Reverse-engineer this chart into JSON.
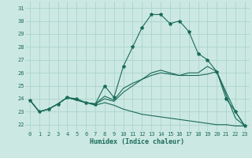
{
  "xlabel": "Humidex (Indice chaleur)",
  "bg_color": "#cce8e2",
  "line_color": "#1a6b5a",
  "grid_color": "#aad4cc",
  "xlim": [
    -0.5,
    23.5
  ],
  "ylim": [
    21.5,
    31.5
  ],
  "yticks": [
    22,
    23,
    24,
    25,
    26,
    27,
    28,
    29,
    30,
    31
  ],
  "xticks": [
    0,
    1,
    2,
    3,
    4,
    5,
    6,
    7,
    8,
    9,
    10,
    11,
    12,
    13,
    14,
    15,
    16,
    17,
    18,
    19,
    20,
    21,
    22,
    23
  ],
  "lines": [
    {
      "x": [
        0,
        1,
        2,
        3,
        4,
        5,
        6,
        7,
        8,
        9,
        10,
        11,
        12,
        13,
        14,
        15,
        16,
        17,
        18,
        19,
        20,
        21,
        22,
        23
      ],
      "y": [
        23.9,
        23.0,
        23.2,
        23.6,
        24.1,
        24.0,
        23.7,
        23.6,
        25.0,
        24.1,
        26.5,
        28.0,
        29.5,
        30.5,
        30.5,
        29.8,
        30.0,
        29.2,
        27.5,
        27.0,
        26.1,
        24.0,
        23.0,
        21.9
      ],
      "with_markers": true
    },
    {
      "x": [
        0,
        1,
        2,
        3,
        4,
        5,
        6,
        7,
        8,
        9,
        10,
        11,
        12,
        13,
        14,
        15,
        16,
        17,
        18,
        19,
        20,
        21,
        22,
        23
      ],
      "y": [
        23.9,
        23.0,
        23.2,
        23.6,
        24.1,
        23.9,
        23.7,
        23.6,
        24.2,
        23.9,
        24.8,
        25.2,
        25.5,
        25.8,
        26.0,
        25.9,
        25.8,
        25.8,
        25.8,
        25.9,
        26.1,
        24.5,
        23.0,
        21.9
      ],
      "with_markers": false
    },
    {
      "x": [
        0,
        1,
        2,
        3,
        4,
        5,
        6,
        7,
        8,
        9,
        10,
        11,
        12,
        13,
        14,
        15,
        16,
        17,
        18,
        19,
        20,
        21,
        22,
        23
      ],
      "y": [
        23.9,
        23.0,
        23.2,
        23.6,
        24.1,
        23.9,
        23.7,
        23.6,
        24.0,
        23.8,
        24.5,
        25.0,
        25.5,
        26.0,
        26.2,
        26.0,
        25.8,
        26.0,
        26.0,
        26.5,
        26.1,
        24.3,
        22.5,
        21.9
      ],
      "with_markers": false
    },
    {
      "x": [
        0,
        1,
        2,
        3,
        4,
        5,
        6,
        7,
        8,
        9,
        10,
        11,
        12,
        13,
        14,
        15,
        16,
        17,
        18,
        19,
        20,
        21,
        22,
        23
      ],
      "y": [
        23.9,
        23.0,
        23.2,
        23.6,
        24.1,
        23.9,
        23.7,
        23.5,
        23.7,
        23.5,
        23.2,
        23.0,
        22.8,
        22.7,
        22.6,
        22.5,
        22.4,
        22.3,
        22.2,
        22.1,
        22.0,
        22.0,
        21.9,
        21.9
      ],
      "with_markers": false
    }
  ]
}
